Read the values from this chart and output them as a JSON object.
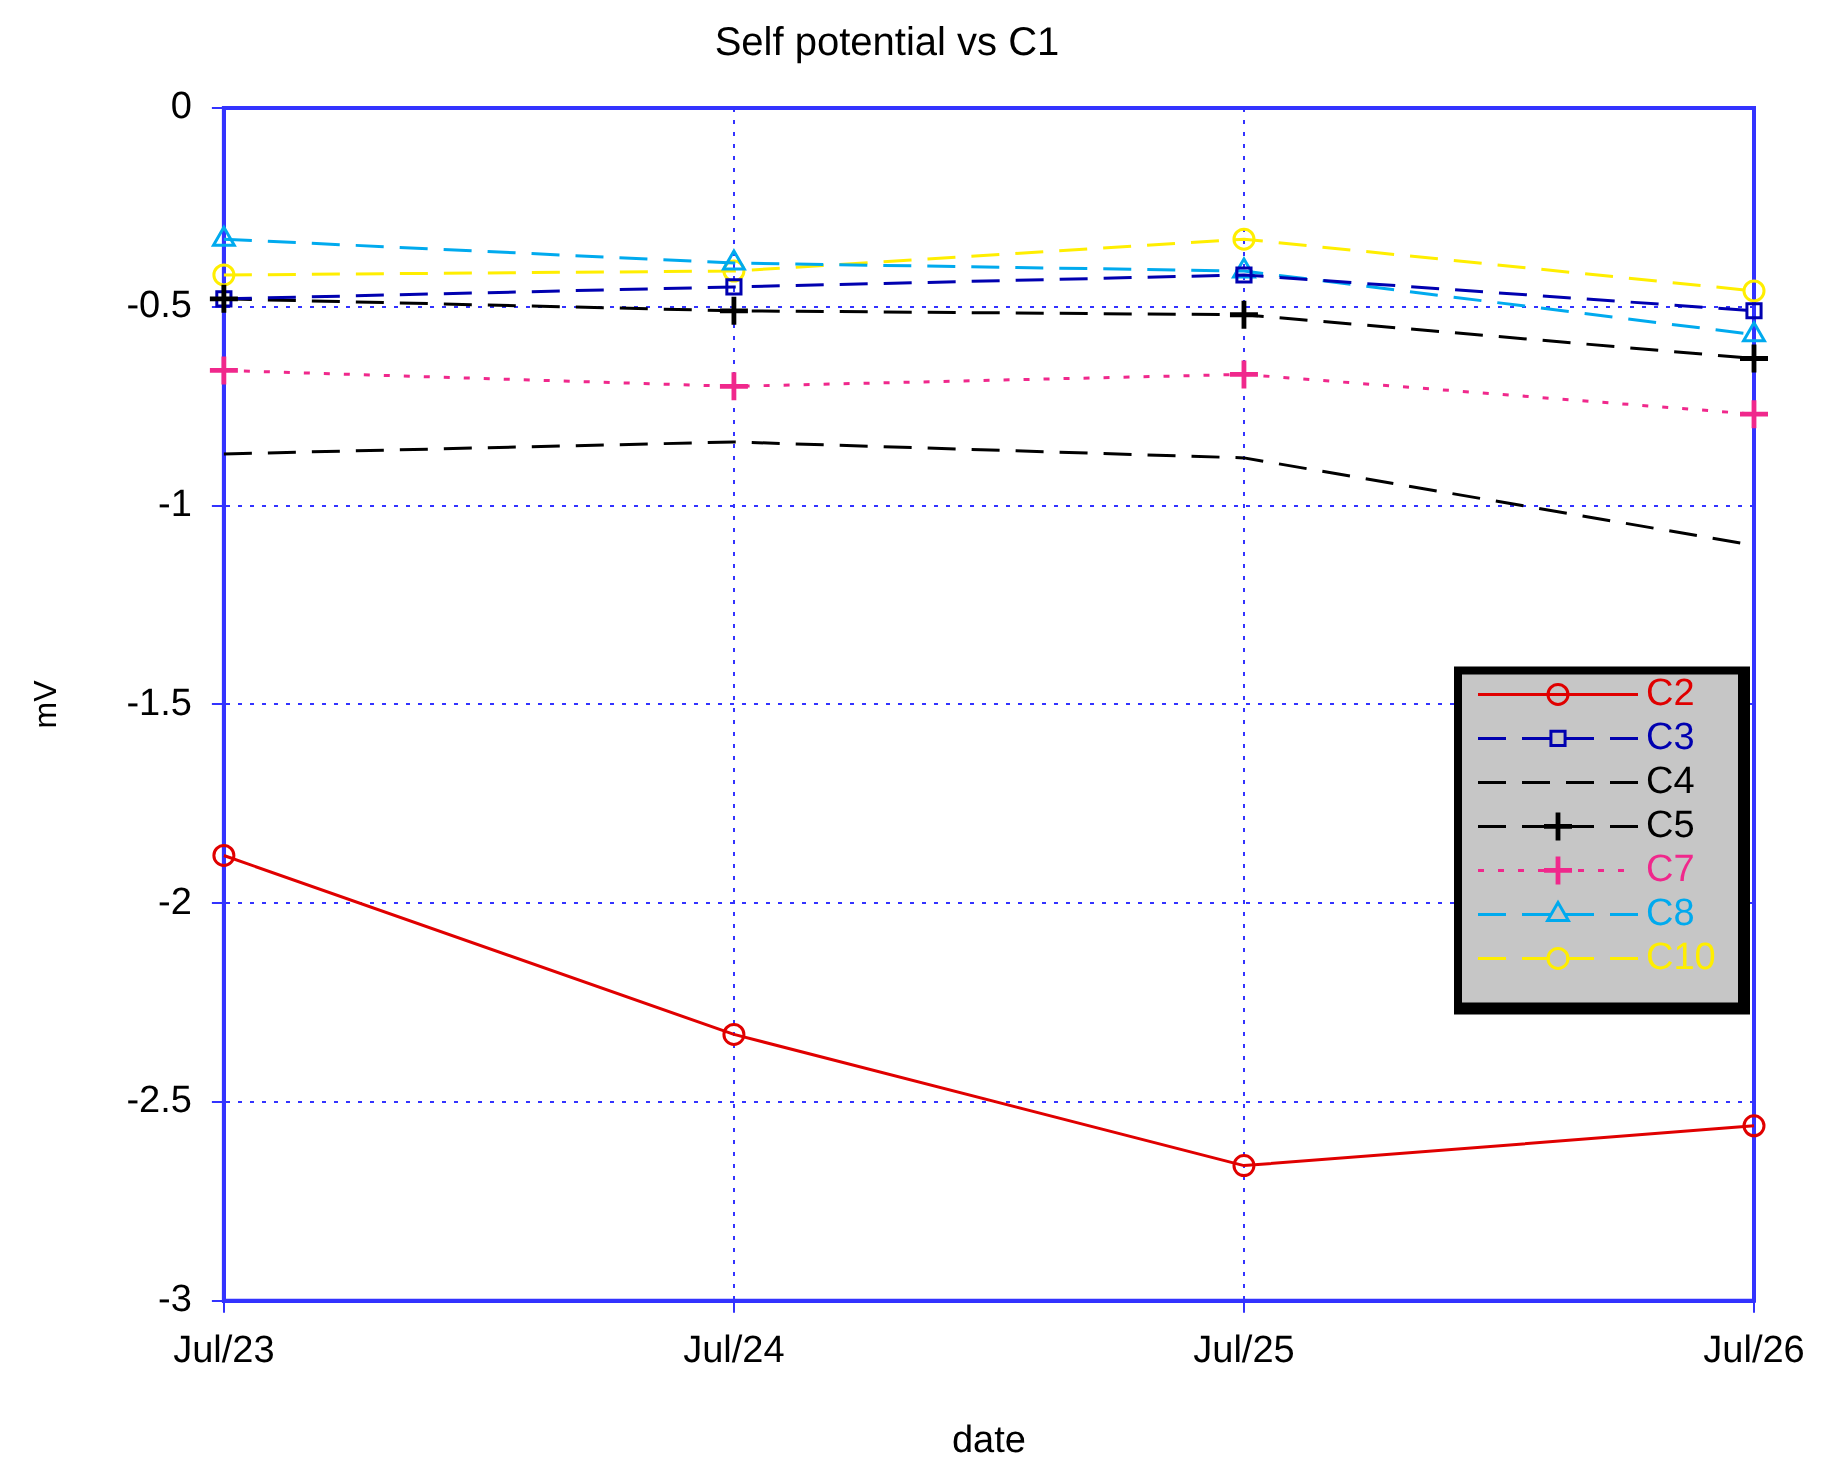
{
  "chart_data": {
    "type": "line",
    "title": "Self potential vs C1",
    "xlabel": "date",
    "ylabel": "mV",
    "categories": [
      "Jul/23",
      "Jul/24",
      "Jul/25",
      "Jul/26"
    ],
    "ylim": [
      -3,
      0
    ],
    "yticks": [
      0,
      -0.5,
      -1,
      -1.5,
      -2,
      -2.5,
      -3
    ],
    "grid": true,
    "legend": "right",
    "series": [
      {
        "name": "C2",
        "color": "#e00000",
        "marker": "circle",
        "line_style": "solid",
        "values": [
          -1.88,
          -2.33,
          -2.66,
          -2.56
        ]
      },
      {
        "name": "C3",
        "color": "#0000b0",
        "marker": "square",
        "line_style": "dashed",
        "values": [
          -0.48,
          -0.45,
          -0.42,
          -0.51
        ]
      },
      {
        "name": "C4",
        "color": "#000000",
        "marker": "none",
        "line_style": "dashed",
        "values": [
          -0.87,
          -0.84,
          -0.88,
          -1.1
        ]
      },
      {
        "name": "C5",
        "color": "#000000",
        "marker": "cross",
        "line_style": "dashed",
        "values": [
          -0.48,
          -0.51,
          -0.52,
          -0.63
        ]
      },
      {
        "name": "C7",
        "color": "#f0288c",
        "marker": "cross",
        "line_style": "dotted",
        "values": [
          -0.66,
          -0.7,
          -0.67,
          -0.77
        ]
      },
      {
        "name": "C8",
        "color": "#00aaee",
        "marker": "triangle",
        "line_style": "dashed",
        "values": [
          -0.33,
          -0.39,
          -0.41,
          -0.57
        ]
      },
      {
        "name": "C10",
        "color": "#ffee00",
        "marker": "circle",
        "line_style": "dashed",
        "values": [
          -0.42,
          -0.41,
          -0.33,
          -0.46
        ]
      }
    ]
  }
}
